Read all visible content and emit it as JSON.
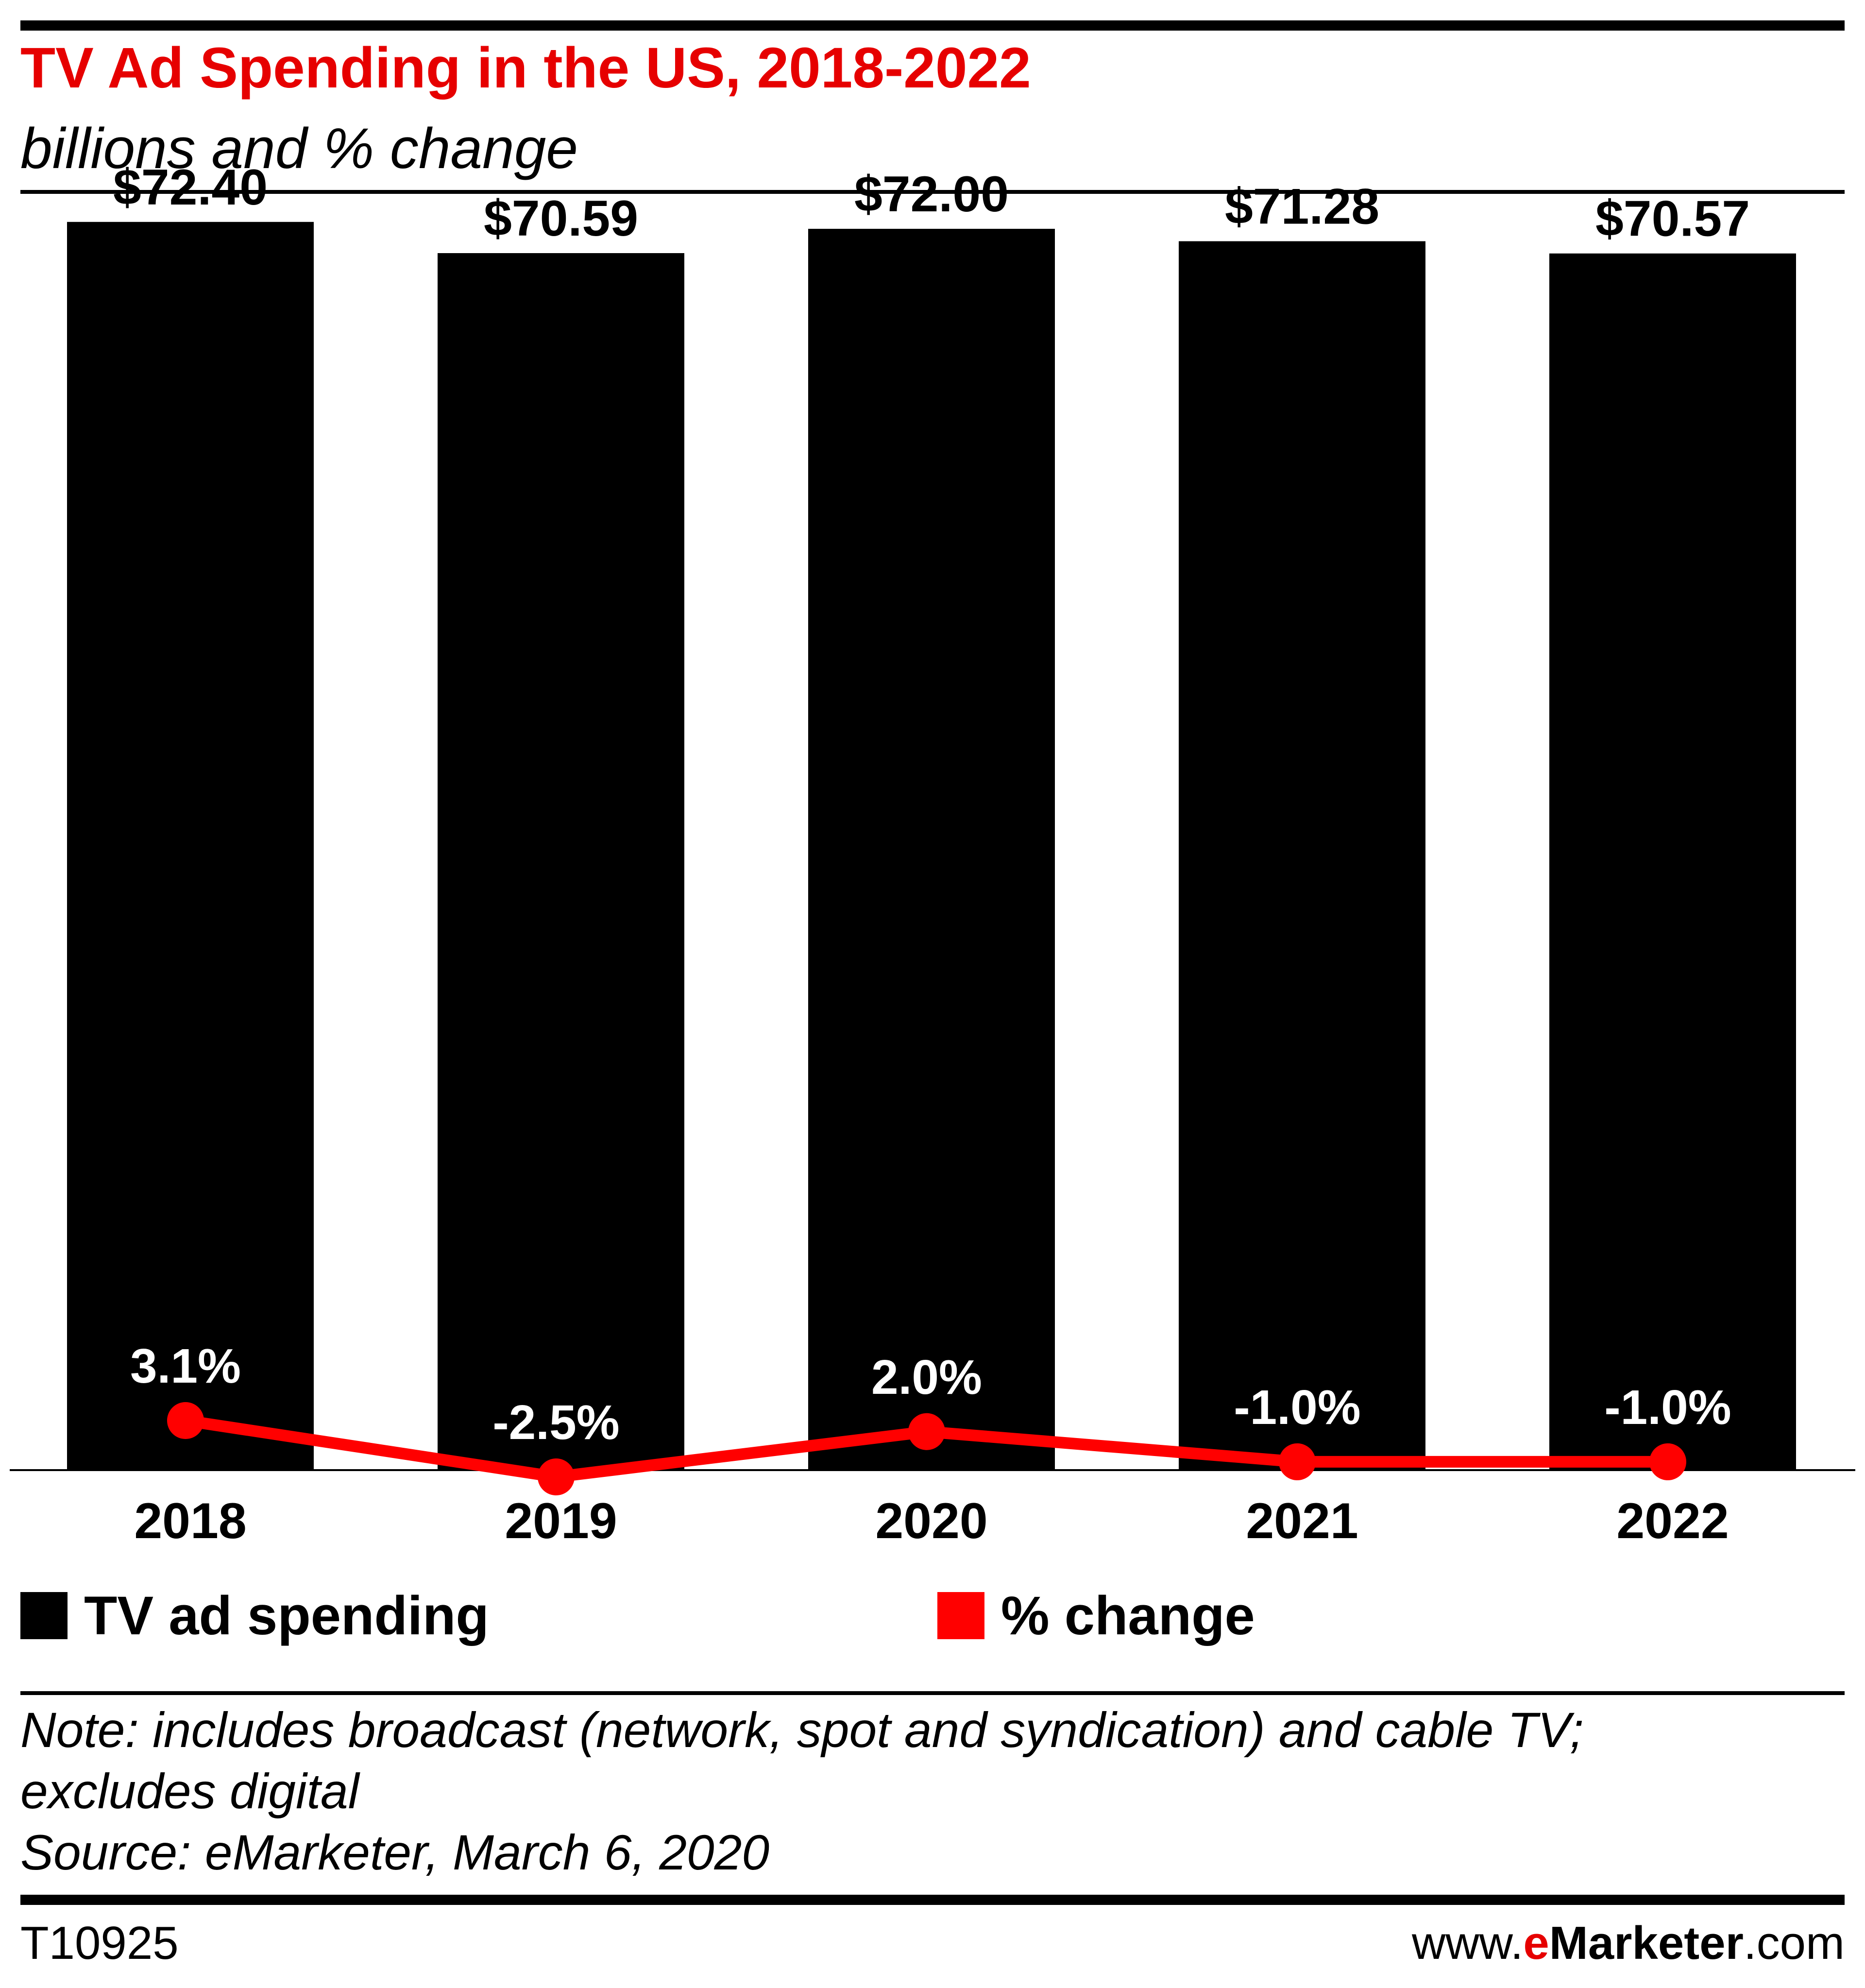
{
  "header": {
    "title": "TV Ad Spending in the US, 2018-2022",
    "subtitle": "billions and % change"
  },
  "legend": {
    "bars_label": "TV ad spending",
    "line_label": "% change",
    "bar_color": "#000000",
    "line_color": "#ff0000"
  },
  "chart_data": {
    "type": "bar",
    "categories": [
      "2018",
      "2019",
      "2020",
      "2021",
      "2022"
    ],
    "series": [
      {
        "name": "TV ad spending",
        "type": "bar",
        "values": [
          72.4,
          70.59,
          72.0,
          71.28,
          70.57
        ],
        "labels": [
          "$72.40",
          "$70.59",
          "$72.00",
          "$71.28",
          "$70.57"
        ],
        "color": "#000000"
      },
      {
        "name": "% change",
        "type": "line",
        "values": [
          3.1,
          -2.5,
          2.0,
          -1.0,
          -1.0
        ],
        "labels": [
          "3.1%",
          "-2.5%",
          "2.0%",
          "-1.0%",
          "-1.0%"
        ],
        "color": "#ff0000"
      }
    ],
    "title": "TV Ad Spending in the US, 2018-2022",
    "subtitle": "billions and % change",
    "xlabel": "",
    "ylabel": "",
    "ylim": [
      0,
      74
    ],
    "grid": false,
    "legend_position": "bottom"
  },
  "notes": {
    "line1": "Note: includes broadcast (network, spot and syndication) and cable TV;",
    "line2": "excludes digital",
    "source": "Source: eMarketer, March 6, 2020"
  },
  "footer": {
    "id": "T10925",
    "site_prefix": "www.",
    "site_e": "e",
    "site_brand": "Marketer",
    "site_suffix": ".com"
  }
}
